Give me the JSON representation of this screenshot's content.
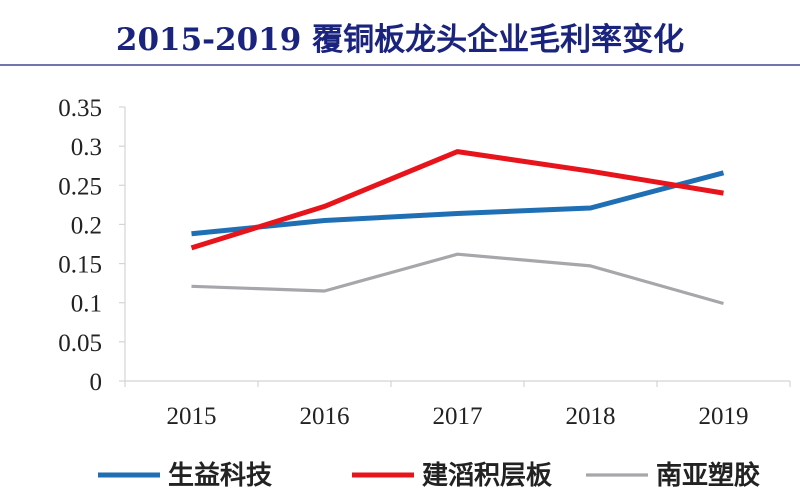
{
  "chart_data": {
    "type": "line",
    "title": "2015-2019 覆铜板龙头企业毛利率变化",
    "xlabel": "",
    "ylabel": "",
    "x": [
      "2015",
      "2016",
      "2017",
      "2018",
      "2019"
    ],
    "ylim": [
      0,
      0.35
    ],
    "yticks": [
      "0",
      "0.05",
      "0.1",
      "0.15",
      "0.2",
      "0.25",
      "0.3",
      "0.35"
    ],
    "grid": false,
    "legend_position": "bottom",
    "series": [
      {
        "name": "生益科技",
        "color": "#1f6fb4",
        "values": [
          0.188,
          0.205,
          0.214,
          0.221,
          0.266
        ]
      },
      {
        "name": "建滔积层板",
        "color": "#e8141b",
        "values": [
          0.17,
          0.223,
          0.293,
          0.268,
          0.24
        ]
      },
      {
        "name": "南亚塑胶",
        "color": "#a7a7ab",
        "values": [
          0.121,
          0.115,
          0.162,
          0.147,
          0.099
        ]
      }
    ]
  },
  "colors": {
    "title": "#1a237e",
    "title_rule": "#1a237e",
    "axis": "#d4d4d4",
    "text": "#222222"
  }
}
